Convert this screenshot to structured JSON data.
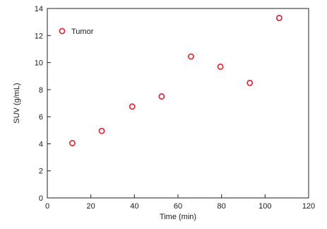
{
  "chart_data": {
    "type": "scatter",
    "xlabel": "Time (min)",
    "ylabel": "SUV (g/mL)",
    "xlim": [
      0,
      120
    ],
    "ylim": [
      0,
      14
    ],
    "xticks": [
      0,
      20,
      40,
      60,
      80,
      100,
      120
    ],
    "yticks": [
      0,
      2,
      4,
      6,
      8,
      10,
      12,
      14
    ],
    "grid": false,
    "legend_position": "top-left",
    "series": [
      {
        "name": "Tumor",
        "color": "#d9333f",
        "marker": "open-circle",
        "x": [
          11.5,
          25,
          39,
          52.5,
          66,
          79.5,
          93,
          106.5
        ],
        "y": [
          4.05,
          4.95,
          6.75,
          7.5,
          10.45,
          9.7,
          8.5,
          13.3
        ]
      }
    ]
  }
}
